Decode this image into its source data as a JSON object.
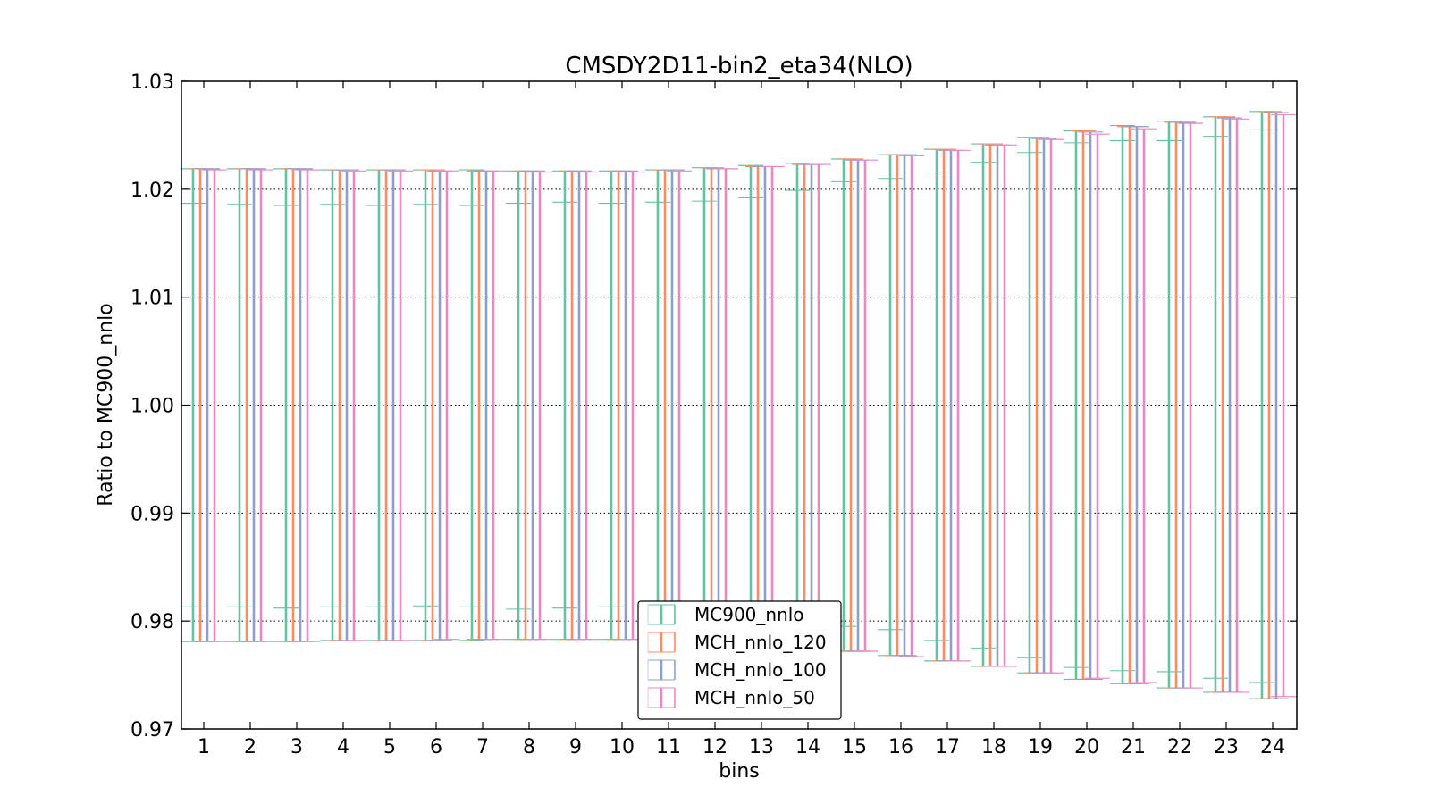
{
  "chart_data": {
    "type": "errorbar",
    "title": "CMSDY2D11-bin2_eta34(NLO)",
    "xlabel": "bins",
    "ylabel": "Ratio to MC900_nnlo",
    "ylim": [
      0.97,
      1.03
    ],
    "yticks": [
      "0.97",
      "0.98",
      "0.99",
      "1.00",
      "1.01",
      "1.02",
      "1.03"
    ],
    "grid": "horizontal dotted",
    "legend_position": "lower center",
    "categories": [
      "1",
      "2",
      "3",
      "4",
      "5",
      "6",
      "7",
      "8",
      "9",
      "10",
      "11",
      "12",
      "13",
      "14",
      "15",
      "16",
      "17",
      "18",
      "19",
      "20",
      "21",
      "22",
      "23",
      "24"
    ],
    "series": [
      {
        "name": "MC900_nnlo",
        "color": "#66c2a5",
        "lower": [
          0.9781,
          0.9781,
          0.9781,
          0.9782,
          0.9782,
          0.9782,
          0.9782,
          0.9783,
          0.9783,
          0.9783,
          0.9782,
          0.9779,
          0.9778,
          0.9777,
          0.9772,
          0.9768,
          0.9763,
          0.9758,
          0.9752,
          0.9746,
          0.9742,
          0.9738,
          0.9734,
          0.9728
        ],
        "upper": [
          1.0219,
          1.0219,
          1.0219,
          1.0218,
          1.0218,
          1.0218,
          1.0218,
          1.0217,
          1.0217,
          1.0217,
          1.0218,
          1.022,
          1.0222,
          1.0224,
          1.0228,
          1.0232,
          1.0237,
          1.0242,
          1.0248,
          1.0254,
          1.0259,
          1.0263,
          1.0267,
          1.0272
        ],
        "inner_lower": [
          0.9813,
          0.9813,
          0.9812,
          0.9813,
          0.9813,
          0.9814,
          0.9813,
          0.9811,
          0.9812,
          0.9813,
          0.9808,
          0.9806,
          0.9803,
          0.9802,
          0.9795,
          0.9792,
          0.9782,
          0.9775,
          0.9766,
          0.9757,
          0.9754,
          0.9753,
          0.9747,
          0.9743
        ],
        "inner_upper": [
          1.0187,
          1.0186,
          1.0185,
          1.0186,
          1.0185,
          1.0186,
          1.0185,
          1.0187,
          1.0188,
          1.0187,
          1.0188,
          1.0189,
          1.0192,
          1.0199,
          1.0207,
          1.021,
          1.0216,
          1.0225,
          1.0234,
          1.0243,
          1.0245,
          1.0245,
          1.0249,
          1.0255
        ]
      },
      {
        "name": "MCH_nnlo_120",
        "color": "#fc8d62",
        "lower": [
          0.9781,
          0.9781,
          0.9781,
          0.9782,
          0.9782,
          0.9782,
          0.9783,
          0.9783,
          0.9783,
          0.9783,
          0.9782,
          0.978,
          0.9779,
          0.9777,
          0.9772,
          0.9768,
          0.9763,
          0.9758,
          0.9752,
          0.9746,
          0.9742,
          0.9738,
          0.9734,
          0.9728
        ],
        "upper": [
          1.0219,
          1.0219,
          1.0219,
          1.0218,
          1.0218,
          1.0218,
          1.0217,
          1.0217,
          1.0217,
          1.0217,
          1.0218,
          1.022,
          1.0221,
          1.0223,
          1.0228,
          1.0232,
          1.0237,
          1.0242,
          1.0248,
          1.0254,
          1.0258,
          1.0262,
          1.0267,
          1.0272
        ]
      },
      {
        "name": "MCH_nnlo_100",
        "color": "#8da0cb",
        "lower": [
          0.9781,
          0.9781,
          0.9781,
          0.9782,
          0.9782,
          0.9782,
          0.9783,
          0.9783,
          0.9783,
          0.9783,
          0.9782,
          0.978,
          0.9778,
          0.9776,
          0.9772,
          0.9768,
          0.9763,
          0.9758,
          0.9752,
          0.9746,
          0.9742,
          0.9738,
          0.9734,
          0.9728
        ],
        "upper": [
          1.0219,
          1.0219,
          1.0219,
          1.0218,
          1.0218,
          1.0217,
          1.0217,
          1.0217,
          1.0217,
          1.0217,
          1.0218,
          1.0219,
          1.0221,
          1.0223,
          1.0227,
          1.0232,
          1.0236,
          1.0241,
          1.0247,
          1.0253,
          1.0258,
          1.0262,
          1.0266,
          1.0271
        ]
      },
      {
        "name": "MCH_nnlo_50",
        "color": "#e78ac3",
        "lower": [
          0.9781,
          0.9781,
          0.9781,
          0.9782,
          0.9782,
          0.9783,
          0.9783,
          0.9783,
          0.9783,
          0.9783,
          0.9782,
          0.978,
          0.9778,
          0.9776,
          0.9772,
          0.9767,
          0.9763,
          0.9758,
          0.9752,
          0.9747,
          0.9743,
          0.9738,
          0.9734,
          0.973
        ],
        "upper": [
          1.0218,
          1.0218,
          1.0218,
          1.0217,
          1.0217,
          1.0217,
          1.0217,
          1.0216,
          1.0216,
          1.0216,
          1.0217,
          1.0219,
          1.0221,
          1.0223,
          1.0227,
          1.0231,
          1.0236,
          1.0241,
          1.0246,
          1.0251,
          1.0256,
          1.0261,
          1.0265,
          1.0269
        ]
      }
    ]
  }
}
